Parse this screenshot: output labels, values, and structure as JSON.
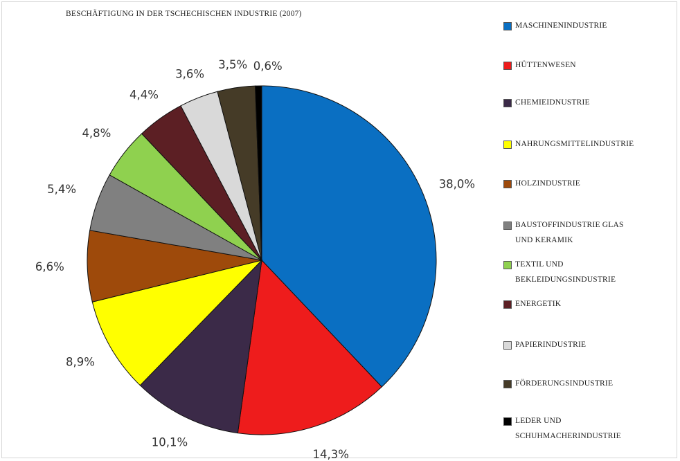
{
  "chart_data": {
    "type": "pie",
    "title": "BESCHÄFTIGUNG IN DER TSCHECHISCHEN INDUSTRIE (2007)",
    "legend_position": "right",
    "slices": [
      {
        "name": "MASCHINENINDUSTRIE",
        "value": 38.0,
        "label": "38,0%",
        "color": "#0a6fc2"
      },
      {
        "name": "HÜTTENWESEN",
        "value": 14.3,
        "label": "14,3%",
        "color": "#ee1c1c"
      },
      {
        "name": "CHEMIEIDNUSTRIE",
        "value": 10.1,
        "label": "10,1%",
        "color": "#3b2a48"
      },
      {
        "name": "NAHRUNGSMITTELINDUSTRIE",
        "value": 8.9,
        "label": "8,9%",
        "color": "#ffff00"
      },
      {
        "name": "HOLZINDUSTRIE",
        "value": 6.6,
        "label": "6,6%",
        "color": "#9e4a0b"
      },
      {
        "name": "BAUSTOFFINDUSTRIE GLAS UND KERAMIK",
        "value": 5.4,
        "label": "5,4%",
        "color": "#808080"
      },
      {
        "name": "TEXTIL UND BEKLEIDUNGSINDUSTRIE",
        "value": 4.8,
        "label": "4,8%",
        "color": "#8fd14f"
      },
      {
        "name": "ENERGETIK",
        "value": 4.4,
        "label": "4,4%",
        "color": "#5c1f24"
      },
      {
        "name": "PAPIERINDUSTRIE",
        "value": 3.6,
        "label": "3,6%",
        "color": "#d9d9d9"
      },
      {
        "name": "FÖRDERUNGSINDUSTRIE",
        "value": 3.5,
        "label": "3,5%",
        "color": "#453b27"
      },
      {
        "name": "LEDER UND SCHUHMACHERINDUSTRIE",
        "value": 0.6,
        "label": "0,6%",
        "color": "#000000"
      }
    ]
  },
  "legend_lines": [
    [
      "MASCHINENINDUSTRIE"
    ],
    [
      "HÜTTENWESEN"
    ],
    [
      "CHEMIEIDNUSTRIE"
    ],
    [
      "NAHRUNGSMITTELINDUSTRIE"
    ],
    [
      "HOLZINDUSTRIE"
    ],
    [
      "BAUSTOFFINDUSTRIE GLAS",
      "UND KERAMIK"
    ],
    [
      "TEXTIL UND",
      "BEKLEIDUNGSINDUSTRIE"
    ],
    [
      "ENERGETIK"
    ],
    [
      "PAPIERINDUSTRIE"
    ],
    [
      "FÖRDERUNGSINDUSTRIE"
    ],
    [
      "LEDER UND",
      "SCHUHMACHERINDUSTRIE"
    ]
  ]
}
